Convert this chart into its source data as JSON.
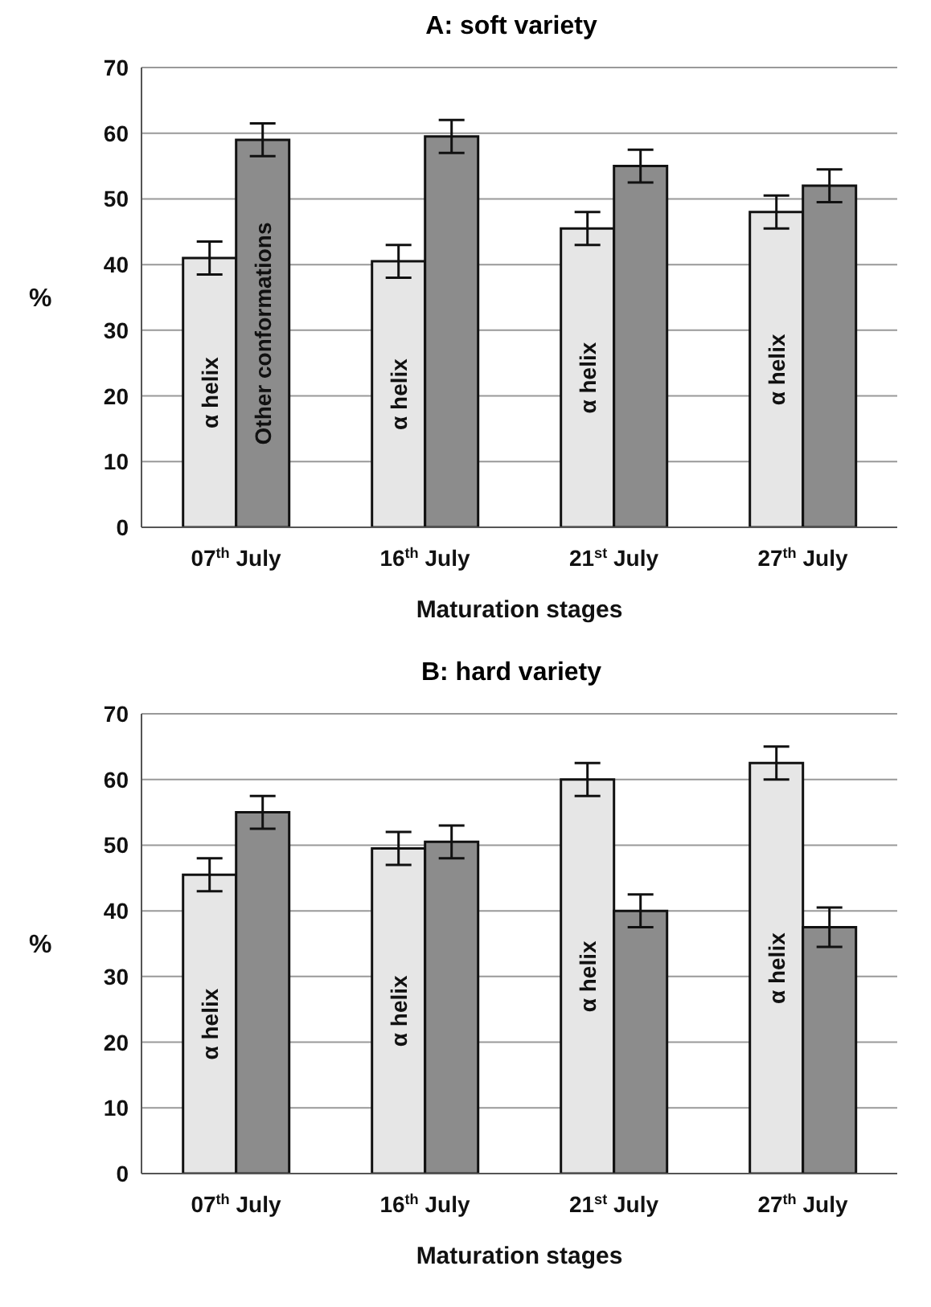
{
  "chart_data": [
    {
      "type": "bar",
      "title": "A: soft variety",
      "xlabel": "Maturation stages",
      "ylabel": "%",
      "categories": [
        "07$^{th}$ July",
        "16$^{th}$ July",
        "21$^{st}$ July",
        "27$^{th}$ July"
      ],
      "series": [
        {
          "color": "#e6e6e6",
          "values": [
            41,
            40.5,
            45.5,
            48
          ],
          "errors": [
            2.5,
            2.5,
            2.5,
            2.5
          ],
          "value_labels": [
            "α helix",
            "α helix",
            "α helix",
            "α helix"
          ]
        },
        {
          "color": "#8c8c8c",
          "values": [
            59,
            59.5,
            55,
            52
          ],
          "errors": [
            2.5,
            2.5,
            2.5,
            2.5
          ],
          "value_labels": [
            "Other conformations",
            null,
            null,
            null
          ]
        }
      ],
      "ylim": [
        0,
        70
      ],
      "yticks": [
        0,
        10,
        20,
        30,
        40,
        50,
        60,
        70
      ],
      "grid": "y",
      "legend": false
    },
    {
      "type": "bar",
      "title": "B: hard variety",
      "xlabel": "Maturation stages",
      "ylabel": "%",
      "categories": [
        "07$^{th}$ July",
        "16$^{th}$ July",
        "21$^{st}$ July",
        "27$^{th}$ July"
      ],
      "series": [
        {
          "color": "#e6e6e6",
          "values": [
            45.5,
            49.5,
            60,
            62.5
          ],
          "errors": [
            2.5,
            2.5,
            2.5,
            2.5
          ],
          "value_labels": [
            "α helix",
            "α helix",
            "α helix",
            "α helix"
          ]
        },
        {
          "color": "#8c8c8c",
          "values": [
            55,
            50.5,
            40,
            37.5
          ],
          "errors": [
            2.5,
            2.5,
            2.5,
            3
          ],
          "value_labels": [
            null,
            null,
            null,
            null
          ]
        }
      ],
      "ylim": [
        0,
        70
      ],
      "yticks": [
        0,
        10,
        20,
        30,
        40,
        50,
        60,
        70
      ],
      "grid": "y",
      "legend": false
    }
  ]
}
